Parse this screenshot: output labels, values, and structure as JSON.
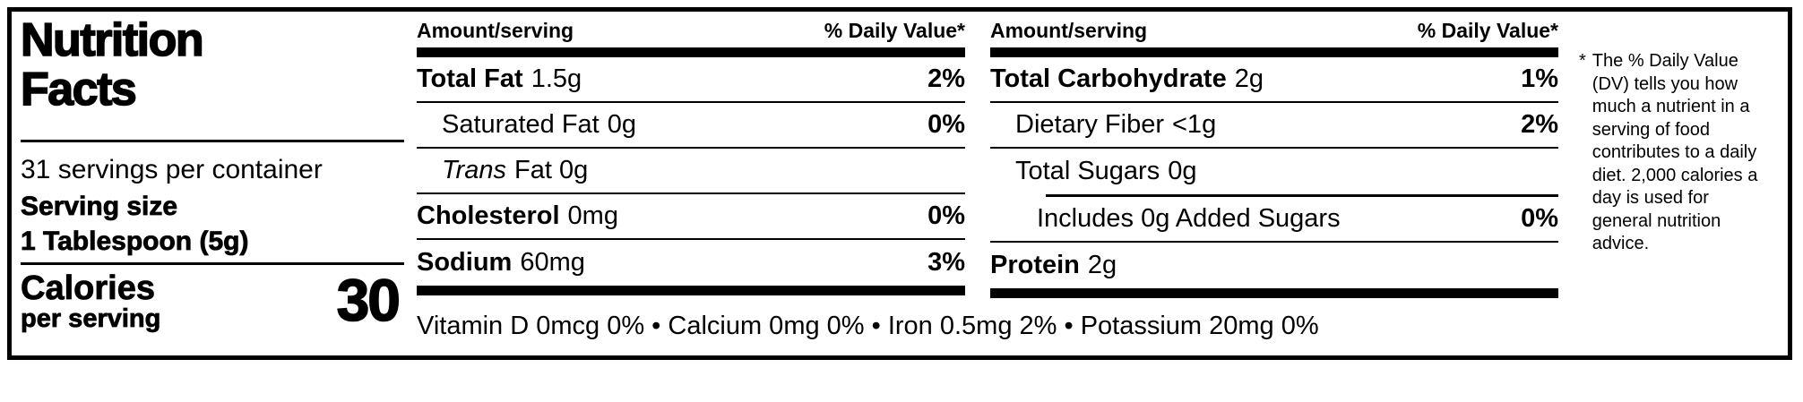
{
  "label": {
    "title_line1": "Nutrition",
    "title_line2": "Facts",
    "servings_per_container": "31 servings per container",
    "serving_size_label": "Serving size",
    "serving_size_value": "1 Tablespoon (5g)",
    "calories_label": "Calories",
    "calories_sublabel": "per serving",
    "calories_value": "30"
  },
  "columns": [
    {
      "header_amount": "Amount/serving",
      "header_dv": "% Daily Value*",
      "rows": [
        {
          "name": "Total Fat",
          "amount": "1.5g",
          "dv": "2%"
        },
        {
          "name": "Saturated Fat",
          "amount": "0g",
          "dv": "0%"
        },
        {
          "name": "Trans",
          "amount": "Fat 0g",
          "dv": ""
        },
        {
          "name": "Cholesterol",
          "amount": "0mg",
          "dv": "0%"
        },
        {
          "name": "Sodium",
          "amount": "60mg",
          "dv": "3%"
        }
      ]
    },
    {
      "header_amount": "Amount/serving",
      "header_dv": "% Daily Value*",
      "rows": [
        {
          "name": "Total Carbohydrate",
          "amount": "2g",
          "dv": "1%"
        },
        {
          "name": "Dietary Fiber",
          "amount": "<1g",
          "dv": "2%"
        },
        {
          "name": "Total Sugars",
          "amount": "0g",
          "dv": ""
        },
        {
          "name": "Includes 0g Added Sugars",
          "amount": "",
          "dv": "0%"
        },
        {
          "name": "Protein",
          "amount": "2g",
          "dv": ""
        }
      ]
    }
  ],
  "micronutrients": {
    "display": "Vitamin D 0mcg 0% • Calcium 0mg 0% • Iron 0.5mg 2% • Potassium 20mg 0%",
    "items": [
      {
        "name": "Vitamin D",
        "amount": "0mcg",
        "dv": "0%"
      },
      {
        "name": "Calcium",
        "amount": "0mg",
        "dv": "0%"
      },
      {
        "name": "Iron",
        "amount": "0.5mg",
        "dv": "2%"
      },
      {
        "name": "Potassium",
        "amount": "20mg",
        "dv": "0%"
      }
    ]
  },
  "footnote": {
    "marker": "*",
    "text": "The % Daily Value (DV) tells you how much a nutrient in a serving of food contributes to a daily diet. 2,000 calories a day is used for general nutrition advice."
  },
  "colors": {
    "ink": "#000000",
    "background": "#ffffff"
  }
}
